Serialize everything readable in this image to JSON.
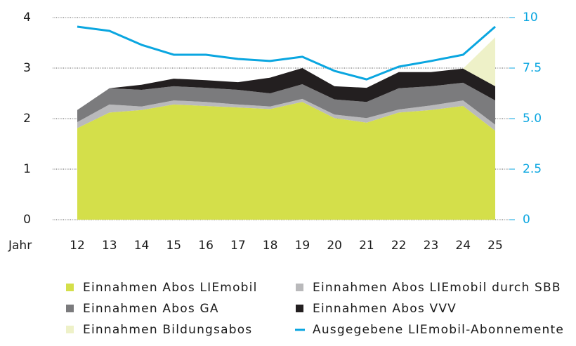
{
  "chart_data": {
    "type": "stacked-area",
    "x_label": "Jahr",
    "categories": [
      "12",
      "13",
      "14",
      "15",
      "16",
      "17",
      "18",
      "19",
      "20",
      "21",
      "22",
      "23",
      "24",
      "25"
    ],
    "series": [
      {
        "name": "Einnahmen Abos LIEmobil",
        "color": "#d4df4a",
        "values": [
          1.81,
          2.12,
          2.17,
          2.28,
          2.25,
          2.22,
          2.19,
          2.33,
          2.01,
          1.92,
          2.12,
          2.17,
          2.25,
          1.76
        ]
      },
      {
        "name": "Einnahmen Abos LIEmobil durch SBB",
        "color": "#b9b9bb",
        "values": [
          0.12,
          0.16,
          0.07,
          0.08,
          0.08,
          0.06,
          0.05,
          0.06,
          0.07,
          0.09,
          0.06,
          0.09,
          0.11,
          0.12
        ]
      },
      {
        "name": "Einnahmen Abos GA",
        "color": "#7b7b7d",
        "values": [
          0.24,
          0.32,
          0.33,
          0.28,
          0.28,
          0.29,
          0.26,
          0.29,
          0.3,
          0.32,
          0.42,
          0.38,
          0.35,
          0.48
        ]
      },
      {
        "name": "Einnahmen Abos VVV",
        "color": "#231f20",
        "values": [
          0,
          0,
          0.1,
          0.15,
          0.15,
          0.15,
          0.31,
          0.32,
          0.26,
          0.28,
          0.32,
          0.28,
          0.28,
          0.28
        ]
      },
      {
        "name": "Einnahmen Bildungsabos",
        "color": "#eef1c8",
        "values": [
          0,
          0,
          0,
          0,
          0,
          0,
          0,
          0,
          0,
          0,
          0,
          0,
          0,
          0.97
        ]
      },
      {
        "name": "Ausgegebene LIEmobil-Abonnemente",
        "color": "#0aa6e0",
        "type": "line",
        "axis": "y2",
        "values": [
          9.55,
          9.34,
          8.65,
          8.16,
          8.16,
          7.95,
          7.85,
          8.06,
          7.36,
          6.94,
          7.57,
          7.85,
          8.16,
          9.55
        ]
      }
    ],
    "ylim": [
      0,
      4
    ],
    "yticks": [
      0,
      1,
      2,
      3,
      4
    ],
    "y2lim": [
      0,
      10
    ],
    "y2ticks": [
      0,
      2.5,
      {
        "value": 5,
        "label": "5.0"
      },
      7.5,
      10
    ],
    "grid": true
  }
}
